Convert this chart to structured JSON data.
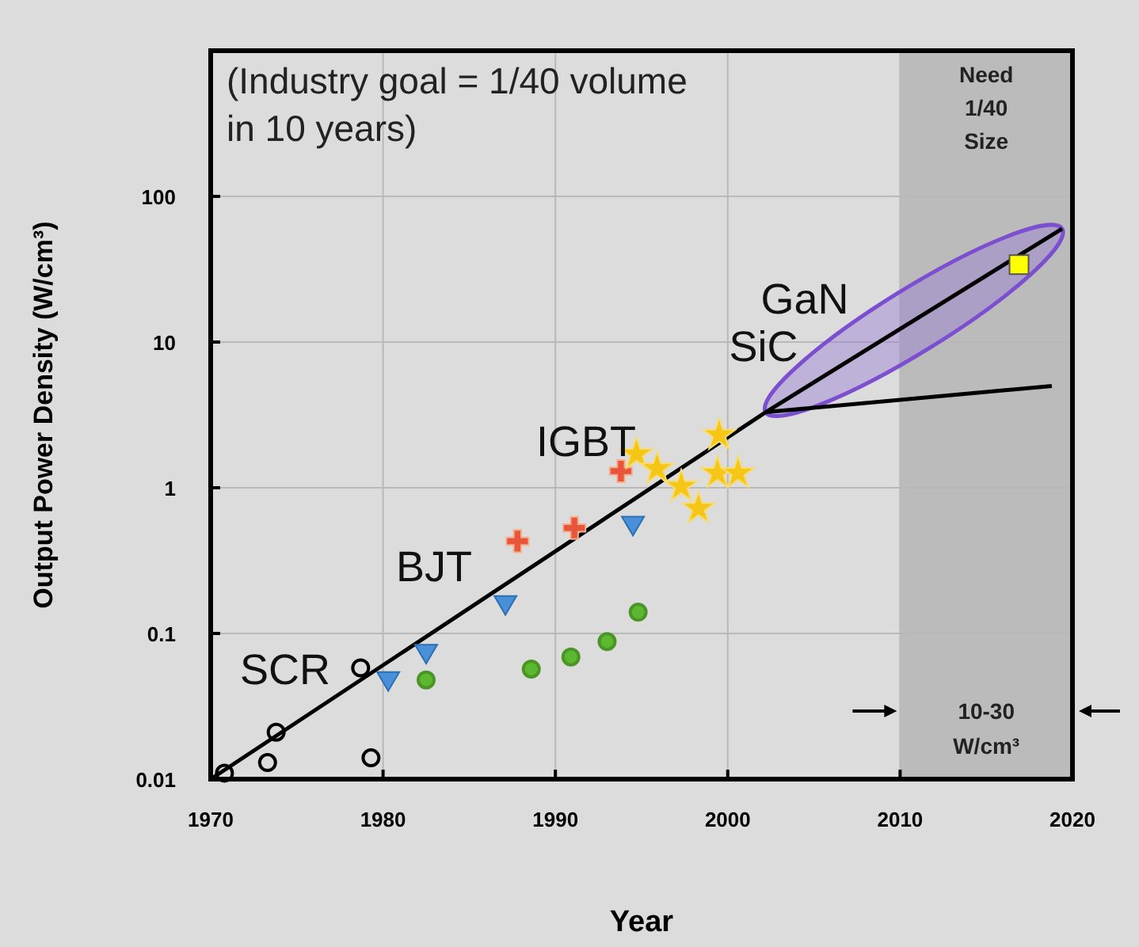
{
  "chart_data": {
    "type": "scatter",
    "xlabel": "Year",
    "ylabel": "Output Power Density (W/cm³)",
    "log": "y",
    "xlim": [
      1970,
      2020
    ],
    "xticks": [
      1970,
      1980,
      1990,
      2000,
      2010,
      2020
    ],
    "ylim": [
      0.01,
      1000
    ],
    "yticks": [
      0.01,
      0.1,
      1,
      10,
      100
    ],
    "grid": true,
    "series": [
      {
        "type": "line",
        "color": "#000000",
        "x": [
          1970,
          2002.2,
          2019.4
        ],
        "values": [
          0.01,
          3.3,
          60
        ]
      },
      {
        "type": "line",
        "color": "#000000",
        "x": [
          2002.2,
          2018.8
        ],
        "values": [
          3.3,
          5
        ]
      },
      {
        "color": "#000000",
        "marker": "circle",
        "x": [
          1970.8,
          1973.3,
          1973.8,
          1978.7,
          1979.3
        ],
        "values": [
          0.011,
          0.013,
          0.021,
          0.058,
          0.014
        ]
      },
      {
        "color": "#4a90d9",
        "marker": "triangle",
        "x": [
          1980.3,
          1982.5,
          1987.1,
          1994.5
        ],
        "values": [
          0.048,
          0.074,
          0.16,
          0.56
        ]
      },
      {
        "color": "#5cb82e",
        "marker": "circle",
        "x": [
          1982.5,
          1988.6,
          1990.9,
          1993,
          1994.8
        ],
        "values": [
          0.048,
          0.057,
          0.069,
          0.088,
          0.14
        ]
      },
      {
        "color": "#e8553a",
        "marker": "cross",
        "x": [
          1987.8,
          1991.1,
          1993.8
        ],
        "values": [
          0.43,
          0.53,
          1.3
        ]
      },
      {
        "color": "#f5c518",
        "marker": "star",
        "x": [
          1994.7,
          1995.9,
          1997.3,
          1998.3,
          1999.5,
          1999.4,
          2000.6
        ],
        "values": [
          1.7,
          1.35,
          1.02,
          0.72,
          2.3,
          1.26,
          1.26
        ]
      },
      {
        "color": "#ffff00",
        "marker": "square",
        "x": [
          2016.9
        ],
        "values": [
          34
        ]
      }
    ],
    "bands": [
      {
        "axis": "x",
        "from": 2010,
        "to": 2020,
        "label": "Need 1/40 Size",
        "color": "#9a9a9a"
      }
    ],
    "annotations": [
      "(Industry goal = 1/40 volume in 10 years)",
      "SCR",
      "BJT",
      "IGBT",
      "SiC",
      "GaN",
      "10-30 W/cm³"
    ]
  }
}
